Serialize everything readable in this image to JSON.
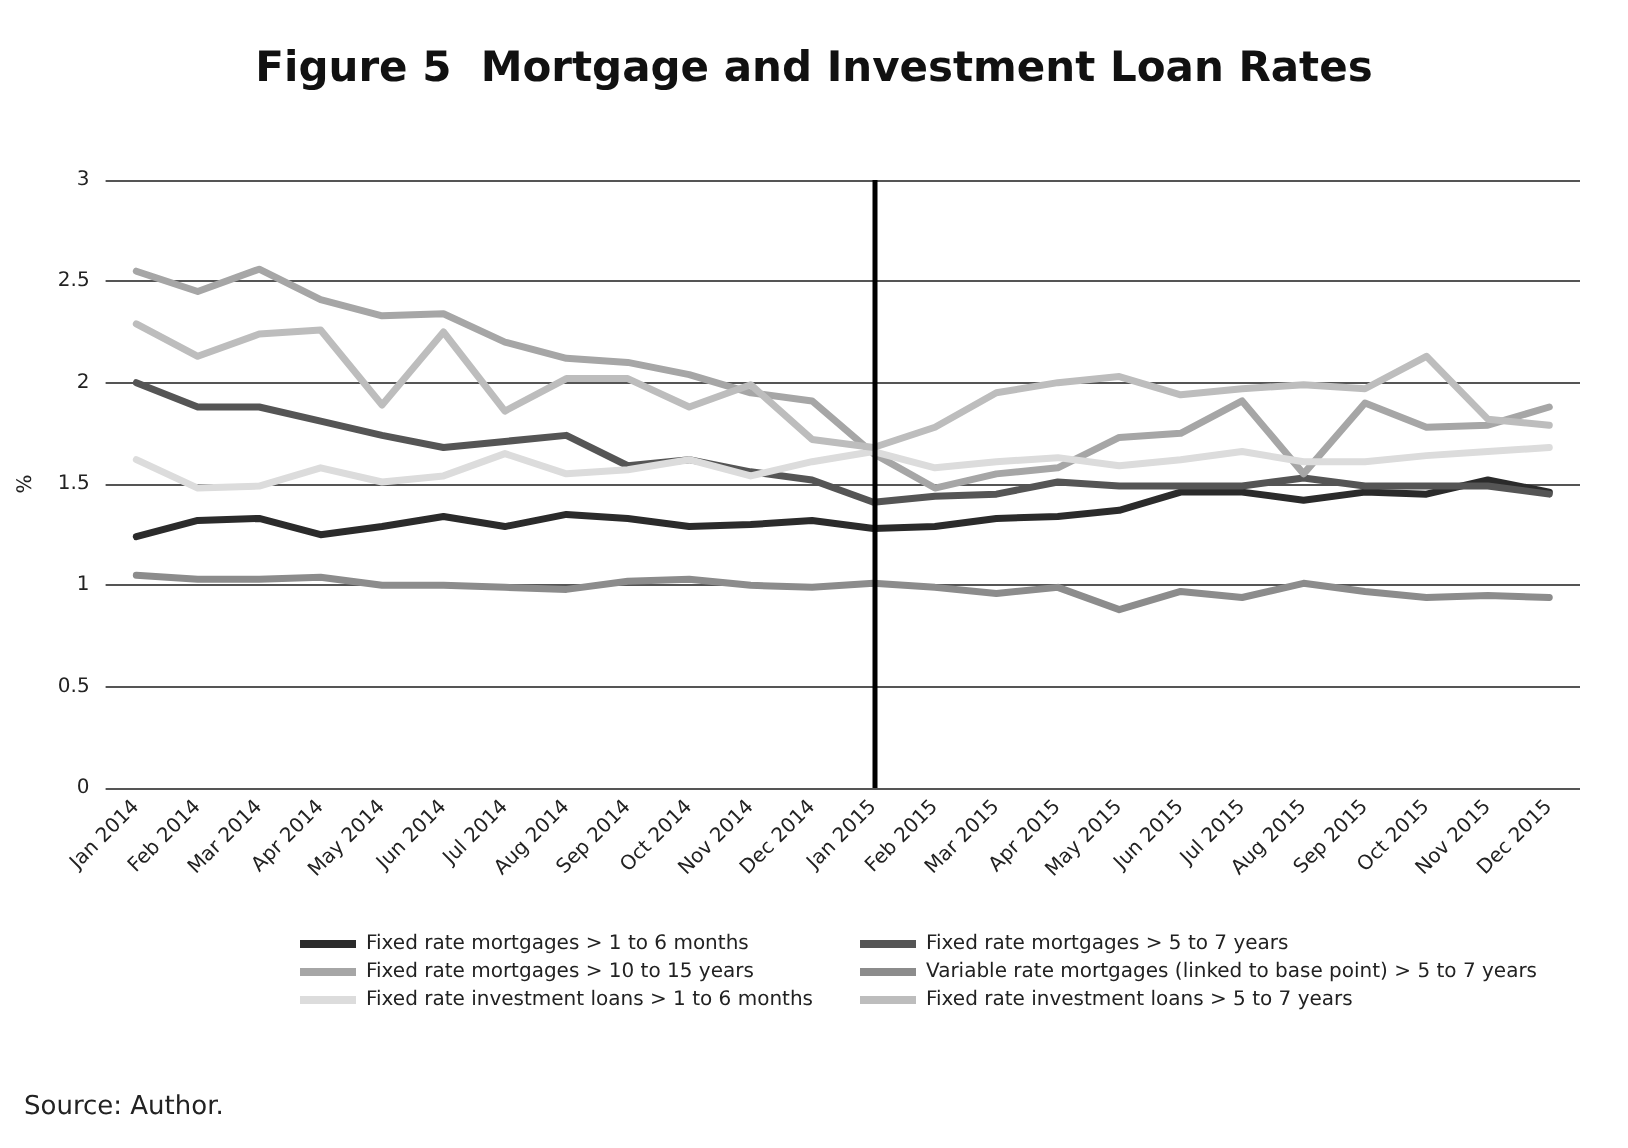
{
  "chart_data": {
    "type": "line",
    "title": "Figure 5  Mortgage and Investment Loan Rates",
    "ylabel": "%",
    "annotations": [
      "Source: Author."
    ],
    "categories": [
      "Jan 2014",
      "Feb 2014",
      "Mar 2014",
      "Apr 2014",
      "May 2014",
      "Jun 2014",
      "Jul 2014",
      "Aug 2014",
      "Sep 2014",
      "Oct 2014",
      "Nov 2014",
      "Dec 2014",
      "Jan 2015",
      "Feb 2015",
      "Mar 2015",
      "Apr 2015",
      "May 2015",
      "Jun 2015",
      "Jul 2015",
      "Aug 2015",
      "Sep 2015",
      "Oct 2015",
      "Nov 2015",
      "Dec 2015"
    ],
    "series": [
      {
        "name": "Fixed rate mortgages > 1 to 6 months",
        "color": "#2b2b2b",
        "values": [
          1.24,
          1.32,
          1.33,
          1.25,
          1.29,
          1.34,
          1.29,
          1.35,
          1.33,
          1.29,
          1.3,
          1.32,
          1.28,
          1.29,
          1.33,
          1.34,
          1.37,
          1.46,
          1.46,
          1.42,
          1.46,
          1.45,
          1.52,
          1.46
        ]
      },
      {
        "name": "Fixed rate mortgages > 5 to 7 years",
        "color": "#555555",
        "values": [
          2.0,
          1.88,
          1.88,
          1.81,
          1.74,
          1.68,
          1.71,
          1.74,
          1.59,
          1.62,
          1.56,
          1.52,
          1.41,
          1.44,
          1.45,
          1.51,
          1.49,
          1.49,
          1.49,
          1.53,
          1.49,
          1.49,
          1.49,
          1.45
        ]
      },
      {
        "name": "Fixed rate mortgages > 10 to 15 years",
        "color": "#a6a6a6",
        "values": [
          2.55,
          2.45,
          2.56,
          2.41,
          2.33,
          2.34,
          2.2,
          2.12,
          2.1,
          2.04,
          1.95,
          1.91,
          1.65,
          1.48,
          1.55,
          1.58,
          1.73,
          1.75,
          1.91,
          1.55,
          1.9,
          1.78,
          1.79,
          1.88
        ]
      },
      {
        "name": "Variable rate mortgages (linked to base point) > 5 to 7 years",
        "color": "#8c8c8c",
        "values": [
          1.05,
          1.03,
          1.03,
          1.04,
          1.0,
          1.0,
          0.99,
          0.98,
          1.02,
          1.03,
          1.0,
          0.99,
          1.01,
          0.99,
          0.96,
          0.99,
          0.88,
          0.97,
          0.94,
          1.01,
          0.97,
          0.94,
          0.95,
          0.94
        ]
      },
      {
        "name": "Fixed rate investment loans > 1 to 6 months",
        "color": "#dcdcdc",
        "values": [
          1.62,
          1.48,
          1.49,
          1.58,
          1.51,
          1.54,
          1.65,
          1.55,
          1.57,
          1.62,
          1.54,
          1.61,
          1.66,
          1.58,
          1.61,
          1.63,
          1.59,
          1.62,
          1.66,
          1.61,
          1.61,
          1.64,
          1.66,
          1.68
        ]
      },
      {
        "name": "Fixed rate investment loans > 5 to 7 years",
        "color": "#bdbdbd",
        "values": [
          2.29,
          2.13,
          2.24,
          2.26,
          1.89,
          2.25,
          1.86,
          2.02,
          2.02,
          1.88,
          1.99,
          1.72,
          1.68,
          1.78,
          1.95,
          2.0,
          2.03,
          1.94,
          1.97,
          1.99,
          1.97,
          2.13,
          1.82,
          1.79
        ]
      }
    ],
    "ylim": [
      0,
      3
    ],
    "yticks": [
      0,
      0.5,
      1,
      1.5,
      2,
      2.5,
      3
    ],
    "grid": "y",
    "legend": "bottom",
    "marker": "none",
    "line_style": "solid",
    "ref_lines": [
      {
        "axis": "x",
        "value": "Jan 2015",
        "color": "#000000"
      }
    ]
  }
}
